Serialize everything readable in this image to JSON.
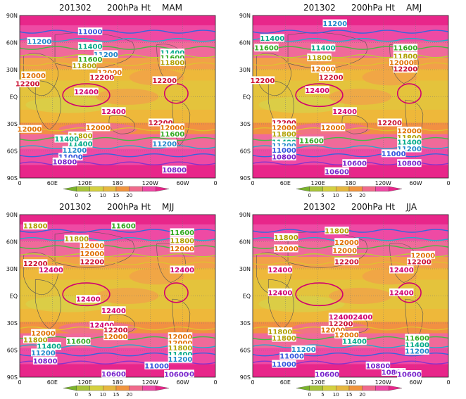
{
  "chart_data": [
    {
      "type": "heatmap",
      "title_left": "201302",
      "title_mid": "200hPa  Ht",
      "season": "MAM",
      "ylabels": [
        "90N",
        "60N",
        "30N",
        "EQ",
        "30S",
        "60S",
        "90S"
      ],
      "xlabels": [
        "0",
        "60E",
        "120E",
        "180",
        "120W",
        "60W",
        "0"
      ],
      "colorbar": [
        "0",
        "5",
        "10",
        "15",
        "20"
      ],
      "contour_labels": [
        "11000",
        "11200",
        "11200",
        "11400",
        "11400",
        "11600",
        "11600",
        "11800",
        "11800",
        "12000",
        "12000",
        "12200",
        "12200",
        "12200",
        "12400",
        "12400",
        "12200",
        "12000",
        "12000",
        "12000",
        "11800",
        "11600",
        "11400",
        "11400",
        "11200",
        "11200",
        "11000",
        "10800",
        "10800"
      ]
    },
    {
      "type": "heatmap",
      "title_left": "201302",
      "title_mid": "200hPa  Ht",
      "season": "AMJ",
      "ylabels": [
        "90N",
        "60N",
        "30N",
        "EQ",
        "30S",
        "60S",
        "90S"
      ],
      "xlabels": [
        "0",
        "60E",
        "120E",
        "180",
        "120W",
        "60W",
        "0"
      ],
      "colorbar": [
        "0",
        "5",
        "10",
        "15",
        "20"
      ],
      "contour_labels": [
        "11200",
        "11400",
        "11400",
        "11600",
        "11600",
        "11800",
        "11800",
        "12000",
        "12000",
        "12200",
        "12200",
        "12200",
        "12400",
        "12400",
        "12200",
        "12200",
        "12000",
        "12000",
        "12000",
        "11800",
        "11800",
        "11600",
        "11400",
        "11400",
        "11200",
        "11200",
        "11000",
        "11000",
        "10800",
        "10800",
        "10600",
        "10600"
      ]
    },
    {
      "type": "heatmap",
      "title_left": "201302",
      "title_mid": "200hPa  Ht",
      "season": "MJJ",
      "ylabels": [
        "90N",
        "60N",
        "30N",
        "EQ",
        "30S",
        "60S",
        "90S"
      ],
      "xlabels": [
        "0",
        "60E",
        "120E",
        "180",
        "120W",
        "60W",
        "0"
      ],
      "colorbar": [
        "0",
        "5",
        "10",
        "15",
        "20"
      ],
      "contour_labels": [
        "11800",
        "11600",
        "11600",
        "11800",
        "11800",
        "12000",
        "12000",
        "12000",
        "12200",
        "12200",
        "12400",
        "12400",
        "12400",
        "12400",
        "12400",
        "12200",
        "12000",
        "12000",
        "12000",
        "12000",
        "11800",
        "11800",
        "11600",
        "11400",
        "11400",
        "11200",
        "11200",
        "11000",
        "10800",
        "10800",
        "10600",
        "10600"
      ]
    },
    {
      "type": "heatmap",
      "title_left": "201302",
      "title_mid": "200hPa  Ht",
      "season": "JJA",
      "ylabels": [
        "90N",
        "60N",
        "30N",
        "EQ",
        "30S",
        "60S",
        "90S"
      ],
      "xlabels": [
        "0",
        "60E",
        "120E",
        "180",
        "120W",
        "60W",
        "0"
      ],
      "colorbar": [
        "0",
        "5",
        "10",
        "15",
        "20"
      ],
      "contour_labels": [
        "11800",
        "11800",
        "12000",
        "12000",
        "12000",
        "12000",
        "12200",
        "12200",
        "12400",
        "12400",
        "12400",
        "12400",
        "12400",
        "12400",
        "12200",
        "12000",
        "12000",
        "11800",
        "11800",
        "11600",
        "11400",
        "11400",
        "11200",
        "11200",
        "11000",
        "10800",
        "10800",
        "10600",
        "10600",
        "11000"
      ]
    }
  ]
}
